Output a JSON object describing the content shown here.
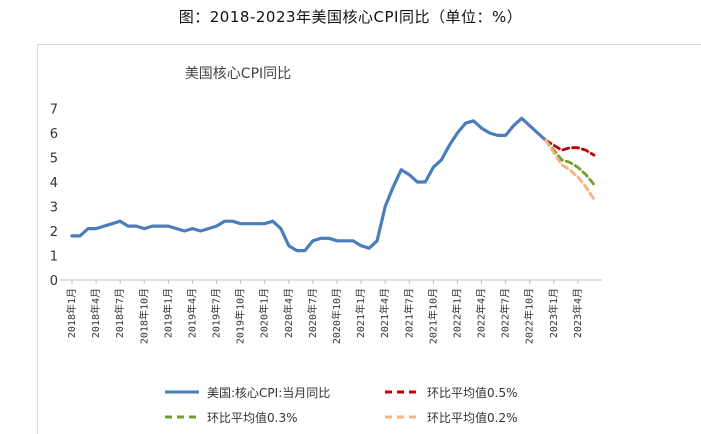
{
  "figure_caption": "图：2018-2023年美国核心CPI同比（单位：%）",
  "chart_data": {
    "type": "line",
    "title": "美国核心CPI同比",
    "ylim": [
      0,
      7
    ],
    "yticks": [
      "0",
      "1",
      "2",
      "3",
      "4",
      "5",
      "6",
      "7"
    ],
    "x_tick_labels": [
      "2018年1月",
      "2018年4月",
      "2018年7月",
      "2018年10月",
      "2019年1月",
      "2019年4月",
      "2019年7月",
      "2019年10月",
      "2020年1月",
      "2020年4月",
      "2020年7月",
      "2020年10月",
      "2021年1月",
      "2021年4月",
      "2021年7月",
      "2021年10月",
      "2022年1月",
      "2022年4月",
      "2022年7月",
      "2022年10月",
      "2023年1月",
      "2023年4月"
    ],
    "grid": false,
    "legend_position": "bottom",
    "x": [
      "2018-01",
      "2018-02",
      "2018-03",
      "2018-04",
      "2018-05",
      "2018-06",
      "2018-07",
      "2018-08",
      "2018-09",
      "2018-10",
      "2018-11",
      "2018-12",
      "2019-01",
      "2019-02",
      "2019-03",
      "2019-04",
      "2019-05",
      "2019-06",
      "2019-07",
      "2019-08",
      "2019-09",
      "2019-10",
      "2019-11",
      "2019-12",
      "2020-01",
      "2020-02",
      "2020-03",
      "2020-04",
      "2020-05",
      "2020-06",
      "2020-07",
      "2020-08",
      "2020-09",
      "2020-10",
      "2020-11",
      "2020-12",
      "2021-01",
      "2021-02",
      "2021-03",
      "2021-04",
      "2021-05",
      "2021-06",
      "2021-07",
      "2021-08",
      "2021-09",
      "2021-10",
      "2021-11",
      "2021-12",
      "2022-01",
      "2022-02",
      "2022-03",
      "2022-04",
      "2022-05",
      "2022-06",
      "2022-07",
      "2022-08",
      "2022-09",
      "2022-10",
      "2022-11",
      "2022-12",
      "2023-01",
      "2023-02",
      "2023-03",
      "2023-04",
      "2023-05",
      "2023-06"
    ],
    "series": [
      {
        "name": "美国:核心CPI:当月同比",
        "color": "#4a7ebb",
        "style": "solid",
        "values": [
          1.8,
          1.8,
          2.1,
          2.1,
          2.2,
          2.3,
          2.4,
          2.2,
          2.2,
          2.1,
          2.2,
          2.2,
          2.2,
          2.1,
          2.0,
          2.1,
          2.0,
          2.1,
          2.2,
          2.4,
          2.4,
          2.3,
          2.3,
          2.3,
          2.3,
          2.4,
          2.1,
          1.4,
          1.2,
          1.2,
          1.6,
          1.7,
          1.7,
          1.6,
          1.6,
          1.6,
          1.4,
          1.3,
          1.6,
          3.0,
          3.8,
          4.5,
          4.3,
          4.0,
          4.0,
          4.6,
          4.9,
          5.5,
          6.0,
          6.4,
          6.5,
          6.2,
          6.0,
          5.9,
          5.9,
          6.3,
          6.6,
          6.3,
          6.0,
          5.7,
          null,
          null,
          null,
          null,
          null,
          null
        ]
      },
      {
        "name": "环比平均值0.5%",
        "color": "#c00000",
        "style": "dashed",
        "values": [
          null,
          null,
          null,
          null,
          null,
          null,
          null,
          null,
          null,
          null,
          null,
          null,
          null,
          null,
          null,
          null,
          null,
          null,
          null,
          null,
          null,
          null,
          null,
          null,
          null,
          null,
          null,
          null,
          null,
          null,
          null,
          null,
          null,
          null,
          null,
          null,
          null,
          null,
          null,
          null,
          null,
          null,
          null,
          null,
          null,
          null,
          null,
          null,
          null,
          null,
          null,
          null,
          null,
          null,
          null,
          null,
          null,
          null,
          null,
          5.7,
          5.5,
          5.3,
          5.4,
          5.4,
          5.3,
          5.1
        ]
      },
      {
        "name": "环比平均值0.3%",
        "color": "#70a030",
        "style": "dashed",
        "values": [
          null,
          null,
          null,
          null,
          null,
          null,
          null,
          null,
          null,
          null,
          null,
          null,
          null,
          null,
          null,
          null,
          null,
          null,
          null,
          null,
          null,
          null,
          null,
          null,
          null,
          null,
          null,
          null,
          null,
          null,
          null,
          null,
          null,
          null,
          null,
          null,
          null,
          null,
          null,
          null,
          null,
          null,
          null,
          null,
          null,
          null,
          null,
          null,
          null,
          null,
          null,
          null,
          null,
          null,
          null,
          null,
          null,
          null,
          null,
          5.7,
          5.3,
          4.9,
          4.8,
          4.6,
          4.3,
          3.9
        ]
      },
      {
        "name": "环比平均值0.2%",
        "color": "#f4b183",
        "style": "dashed",
        "values": [
          null,
          null,
          null,
          null,
          null,
          null,
          null,
          null,
          null,
          null,
          null,
          null,
          null,
          null,
          null,
          null,
          null,
          null,
          null,
          null,
          null,
          null,
          null,
          null,
          null,
          null,
          null,
          null,
          null,
          null,
          null,
          null,
          null,
          null,
          null,
          null,
          null,
          null,
          null,
          null,
          null,
          null,
          null,
          null,
          null,
          null,
          null,
          null,
          null,
          null,
          null,
          null,
          null,
          null,
          null,
          null,
          null,
          null,
          null,
          5.7,
          5.2,
          4.7,
          4.5,
          4.2,
          3.8,
          3.3
        ]
      }
    ]
  }
}
